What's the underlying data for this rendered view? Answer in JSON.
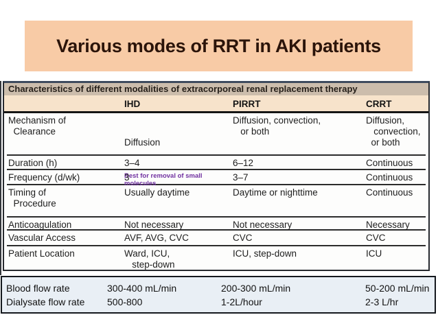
{
  "title": "Various modes of RRT in AKI patients",
  "table": {
    "caption": "Characteristics of different modalities of extracorporeal renal replacement therapy",
    "columns": [
      "",
      "IHD",
      "PIRRT",
      "CRRT"
    ],
    "rows": [
      {
        "label": "Mechanism of\n  Clearance",
        "ihd": "Diffusion",
        "ihd_note": "Best for removal of small molecules",
        "pirrt": "Diffusion, convection,\n   or both",
        "crrt": "Diffusion,\n   convection,\n  or both"
      },
      {
        "label": "Duration (h)",
        "ihd": "3–4",
        "pirrt": "6–12",
        "crrt": "Continuous"
      },
      {
        "label": "Frequency (d/wk)",
        "ihd": "3",
        "pirrt": "3–7",
        "crrt": "Continuous"
      },
      {
        "label": "Timing of\n  Procedure",
        "ihd": "Usually daytime",
        "pirrt": "Daytime or nighttime",
        "crrt": "Continuous"
      },
      {
        "label": "Anticoagulation",
        "ihd": "Not necessary",
        "pirrt": "Not necessary",
        "crrt": "Necessary"
      },
      {
        "label": "Vascular Access",
        "ihd": "AVF, AVG, CVC",
        "pirrt": "CVC",
        "crrt": "CVC"
      },
      {
        "label": "Patient Location",
        "ihd": "Ward, ICU,\n   step-down",
        "pirrt": "ICU, step-down",
        "crrt": "ICU"
      }
    ]
  },
  "flow_rates": {
    "rows": [
      {
        "label": "Blood flow rate",
        "ihd": "300-400 mL/min",
        "pirrt": "200-300 mL/min",
        "crrt": "50-200 mL/min"
      },
      {
        "label": "Dialysate flow rate",
        "ihd": "500-800",
        "pirrt": "1-2L/hour",
        "crrt": "2-3 L/hr"
      }
    ]
  },
  "colors": {
    "title_bg": "#F8CBA6",
    "title_text": "#2b140a",
    "caption_band_bg": "#CCBDAC",
    "header_band_bg": "#F7E3CB",
    "annotation_purple": "#7030A0",
    "flow_panel_bg": "#E9EFF5",
    "frame_border": "#26292e"
  }
}
